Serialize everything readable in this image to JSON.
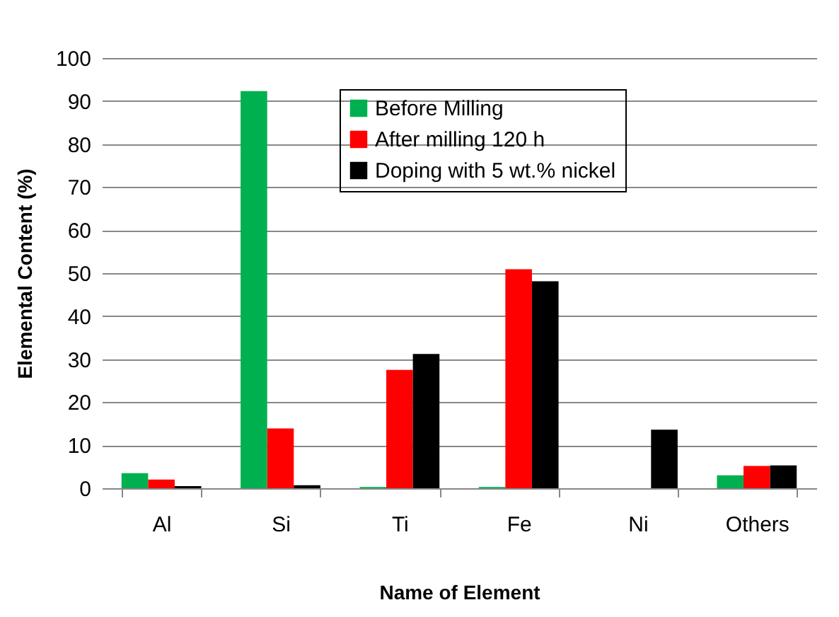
{
  "chart_data": {
    "type": "bar",
    "xlabel": "Name of Element",
    "ylabel": "Elemental Content (%)",
    "categories": [
      "Al",
      "Si",
      "Ti",
      "Fe",
      "Ni",
      "Others"
    ],
    "series": [
      {
        "name": "Before Milling",
        "color": "#00b050",
        "values": [
          3.5,
          92.3,
          0.3,
          0.3,
          0,
          3
        ]
      },
      {
        "name": "After milling 120 h",
        "color": "#ff0000",
        "values": [
          2,
          13.9,
          27.5,
          50.9,
          0,
          5.2
        ]
      },
      {
        "name": "Doping with 5 wt.% nickel",
        "color": "#000000",
        "values": [
          0.5,
          0.7,
          31.2,
          48.1,
          13.6,
          5.3
        ]
      }
    ],
    "ylim": [
      0,
      100
    ],
    "yticks": [
      0,
      10,
      20,
      30,
      40,
      50,
      60,
      70,
      80,
      90,
      100
    ],
    "grid": "y",
    "legend": "top right"
  }
}
